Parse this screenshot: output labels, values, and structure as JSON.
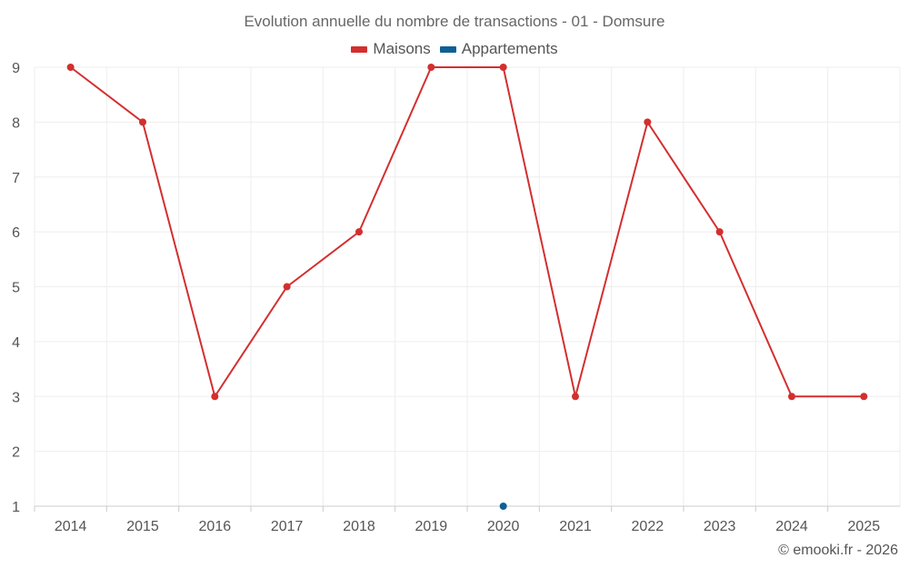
{
  "chart_data": {
    "type": "line",
    "title": "Evolution annuelle du nombre de transactions - 01 - Domsure",
    "xlabel": "",
    "ylabel": "",
    "categories": [
      "2014",
      "2015",
      "2016",
      "2017",
      "2018",
      "2019",
      "2020",
      "2021",
      "2022",
      "2023",
      "2024",
      "2025"
    ],
    "ylim": [
      1,
      9
    ],
    "yticks": [
      "1",
      "2",
      "3",
      "4",
      "5",
      "6",
      "7",
      "8",
      "9"
    ],
    "grid": true,
    "legend_position": "top",
    "series": [
      {
        "name": "Maisons",
        "color": "#d32f2f",
        "values": [
          9,
          8,
          3,
          5,
          6,
          9,
          9,
          3,
          8,
          6,
          3,
          3
        ]
      },
      {
        "name": "Appartements",
        "color": "#0d6096",
        "values": [
          null,
          null,
          null,
          null,
          null,
          null,
          1,
          null,
          null,
          null,
          null,
          null
        ]
      }
    ]
  },
  "credit": "© emooki.fr - 2026"
}
